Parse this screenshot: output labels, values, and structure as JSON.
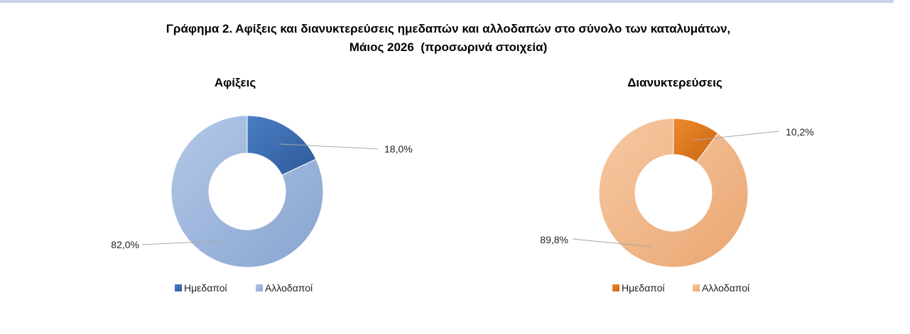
{
  "title": {
    "line1": "Γράφημα 2. Αφίξεις και διανυκτερεύσεις ημεδαπών και αλλοδαπών στο σύνολο των καταλυμάτων,",
    "line2": "Μάιος 2026  (προσωρινά στοιχεία)"
  },
  "chart_data": [
    {
      "type": "pie",
      "variant": "doughnut",
      "title": "Αφίξεις",
      "categories": [
        "Ημεδαποί",
        "Αλλοδαποί"
      ],
      "values": [
        18.0,
        82.0
      ],
      "data_labels": [
        "18,0%",
        "82,0%"
      ],
      "colors": [
        "#3a6cb0",
        "#9db6df"
      ],
      "legend": "bottom"
    },
    {
      "type": "pie",
      "variant": "doughnut",
      "title": "Διανυκτερεύσεις",
      "categories": [
        "Ημεδαποί",
        "Αλλοδαποί"
      ],
      "values": [
        10.2,
        89.8
      ],
      "data_labels": [
        "10,2%",
        "89,8%"
      ],
      "colors": [
        "#e0781c",
        "#f2b98a"
      ],
      "legend": "bottom"
    }
  ]
}
